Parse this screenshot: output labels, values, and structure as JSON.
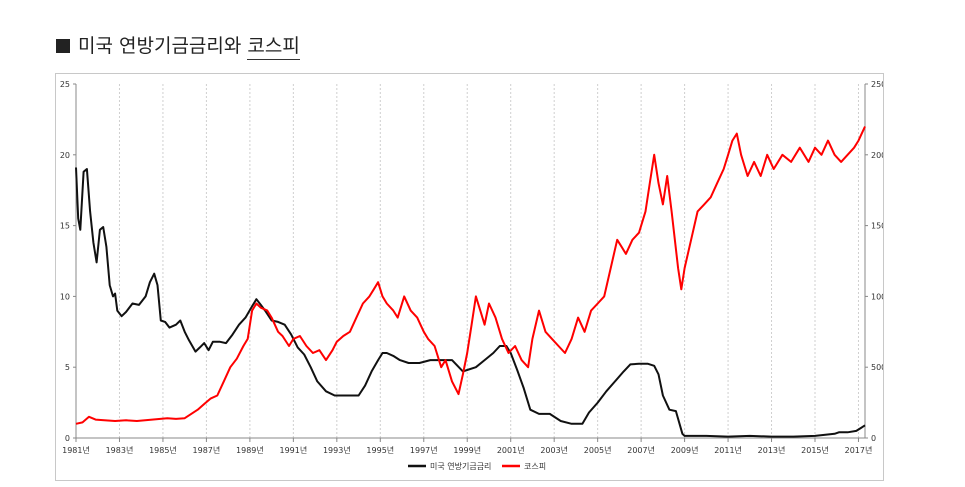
{
  "heading": {
    "title_part1": "미국 연방기금금리와",
    "title_part2": "코스피"
  },
  "chart_data": {
    "type": "line",
    "title": "미국 연방기금금리와 코스피",
    "left_axis": {
      "ylim": [
        0,
        25
      ],
      "ticks": [
        0,
        5,
        10,
        15,
        20,
        25
      ]
    },
    "right_axis": {
      "ylim": [
        0,
        2500
      ],
      "ticks": [
        0,
        500,
        1000,
        1500,
        2000,
        2500
      ]
    },
    "x_range": [
      1981,
      2017.3
    ],
    "x_tick_labels": [
      "1981년",
      "1983년",
      "1985년",
      "1987년",
      "1989년",
      "1991년",
      "1993년",
      "1995년",
      "1997년",
      "1999년",
      "2001년",
      "2003년",
      "2005년",
      "2007년",
      "2009년",
      "2011년",
      "2013년",
      "2015년",
      "2017년"
    ],
    "grid": "vertical dashed",
    "legend_position": "bottom-center",
    "series": [
      {
        "name": "미국 연방기금금리",
        "axis": "left",
        "color": "#111111",
        "x": [
          1981.0,
          1981.1,
          1981.2,
          1981.35,
          1981.5,
          1981.65,
          1981.8,
          1981.95,
          1982.1,
          1982.25,
          1982.4,
          1982.55,
          1982.7,
          1982.8,
          1982.9,
          1983.1,
          1983.3,
          1983.6,
          1983.9,
          1984.2,
          1984.4,
          1984.6,
          1984.75,
          1984.9,
          1985.1,
          1985.3,
          1985.6,
          1985.8,
          1986.0,
          1986.2,
          1986.5,
          1986.7,
          1986.9,
          1987.1,
          1987.3,
          1987.6,
          1987.9,
          1988.2,
          1988.5,
          1988.8,
          1989.1,
          1989.3,
          1989.5,
          1989.7,
          1990.0,
          1990.3,
          1990.6,
          1990.9,
          1991.2,
          1991.5,
          1991.8,
          1992.1,
          1992.5,
          1992.9,
          1993.3,
          1993.7,
          1994.0,
          1994.3,
          1994.6,
          1994.9,
          1995.1,
          1995.3,
          1995.6,
          1995.9,
          1996.3,
          1996.8,
          1997.3,
          1997.8,
          1998.3,
          1998.8,
          1999.0,
          1999.4,
          1999.8,
          2000.2,
          2000.5,
          2000.8,
          2001.0,
          2001.3,
          2001.6,
          2001.9,
          2002.3,
          2002.8,
          2003.3,
          2003.8,
          2004.3,
          2004.6,
          2005.0,
          2005.4,
          2005.8,
          2006.2,
          2006.5,
          2006.9,
          2007.3,
          2007.6,
          2007.8,
          2008.0,
          2008.3,
          2008.6,
          2008.9,
          2009.0,
          2009.5,
          2010.0,
          2011.0,
          2012.0,
          2013.0,
          2014.0,
          2015.0,
          2015.9,
          2016.1,
          2016.5,
          2016.9,
          2017.1,
          2017.3
        ],
        "values": [
          19.1,
          15.5,
          14.7,
          18.8,
          19.0,
          16.0,
          13.8,
          12.4,
          14.7,
          14.9,
          13.5,
          10.8,
          10.0,
          10.2,
          9.0,
          8.6,
          8.9,
          9.5,
          9.4,
          10.0,
          11.0,
          11.6,
          10.8,
          8.3,
          8.2,
          7.8,
          8.0,
          8.3,
          7.5,
          6.9,
          6.1,
          6.4,
          6.7,
          6.2,
          6.8,
          6.8,
          6.7,
          7.3,
          8.0,
          8.5,
          9.3,
          9.8,
          9.4,
          9.0,
          8.3,
          8.2,
          8.0,
          7.3,
          6.4,
          5.9,
          5.0,
          4.0,
          3.3,
          3.0,
          3.0,
          3.0,
          3.0,
          3.7,
          4.7,
          5.5,
          6.0,
          6.0,
          5.8,
          5.5,
          5.3,
          5.3,
          5.5,
          5.5,
          5.5,
          4.7,
          4.8,
          5.0,
          5.5,
          6.0,
          6.5,
          6.5,
          6.0,
          4.8,
          3.5,
          2.0,
          1.7,
          1.7,
          1.2,
          1.0,
          1.0,
          1.8,
          2.5,
          3.3,
          4.0,
          4.7,
          5.2,
          5.25,
          5.25,
          5.1,
          4.5,
          3.0,
          2.0,
          1.9,
          0.3,
          0.15,
          0.15,
          0.15,
          0.1,
          0.15,
          0.1,
          0.1,
          0.15,
          0.3,
          0.4,
          0.4,
          0.5,
          0.7,
          0.9
        ]
      },
      {
        "name": "코스피",
        "axis": "right",
        "color": "#ff0000",
        "x": [
          1981.0,
          1981.3,
          1981.6,
          1981.9,
          1982.3,
          1982.8,
          1983.3,
          1983.8,
          1984.5,
          1985.2,
          1985.6,
          1986.0,
          1986.3,
          1986.6,
          1986.9,
          1987.2,
          1987.5,
          1987.8,
          1988.1,
          1988.4,
          1988.7,
          1988.9,
          1989.1,
          1989.3,
          1989.5,
          1989.8,
          1990.0,
          1990.3,
          1990.5,
          1990.8,
          1991.0,
          1991.3,
          1991.6,
          1991.9,
          1992.2,
          1992.5,
          1992.8,
          1993.0,
          1993.3,
          1993.6,
          1993.9,
          1994.2,
          1994.5,
          1994.7,
          1994.9,
          1995.1,
          1995.3,
          1995.6,
          1995.8,
          1996.1,
          1996.4,
          1996.7,
          1997.0,
          1997.2,
          1997.5,
          1997.8,
          1998.0,
          1998.3,
          1998.6,
          1998.8,
          1999.0,
          1999.2,
          1999.4,
          1999.6,
          1999.8,
          2000.0,
          2000.3,
          2000.6,
          2000.9,
          2001.2,
          2001.5,
          2001.8,
          2002.0,
          2002.3,
          2002.6,
          2002.9,
          2003.2,
          2003.5,
          2003.8,
          2004.1,
          2004.4,
          2004.7,
          2005.0,
          2005.3,
          2005.6,
          2005.9,
          2006.1,
          2006.3,
          2006.6,
          2006.9,
          2007.2,
          2007.4,
          2007.6,
          2007.8,
          2008.0,
          2008.2,
          2008.4,
          2008.7,
          2008.85,
          2009.0,
          2009.3,
          2009.6,
          2009.9,
          2010.2,
          2010.5,
          2010.8,
          2011.0,
          2011.2,
          2011.4,
          2011.6,
          2011.9,
          2012.2,
          2012.5,
          2012.8,
          2013.1,
          2013.5,
          2013.9,
          2014.3,
          2014.7,
          2015.0,
          2015.3,
          2015.6,
          2015.9,
          2016.2,
          2016.5,
          2016.8,
          2017.0,
          2017.3
        ],
        "values": [
          100,
          110,
          150,
          130,
          125,
          120,
          125,
          120,
          130,
          140,
          135,
          140,
          170,
          200,
          240,
          280,
          300,
          400,
          500,
          560,
          650,
          700,
          900,
          950,
          920,
          900,
          850,
          750,
          720,
          650,
          700,
          720,
          650,
          600,
          620,
          550,
          620,
          680,
          720,
          750,
          850,
          950,
          1000,
          1050,
          1100,
          1000,
          950,
          900,
          850,
          1000,
          900,
          850,
          750,
          700,
          650,
          500,
          550,
          400,
          310,
          450,
          600,
          800,
          1000,
          900,
          800,
          950,
          850,
          700,
          600,
          650,
          550,
          500,
          700,
          900,
          750,
          700,
          650,
          600,
          700,
          850,
          750,
          900,
          950,
          1000,
          1200,
          1400,
          1350,
          1300,
          1400,
          1450,
          1600,
          1800,
          2000,
          1800,
          1650,
          1850,
          1600,
          1200,
          1050,
          1200,
          1400,
          1600,
          1650,
          1700,
          1800,
          1900,
          2000,
          2100,
          2150,
          2000,
          1850,
          1950,
          1850,
          2000,
          1900,
          2000,
          1950,
          2050,
          1950,
          2050,
          2000,
          2100,
          2000,
          1950,
          2000,
          2050,
          2100,
          2200
        ]
      }
    ]
  }
}
